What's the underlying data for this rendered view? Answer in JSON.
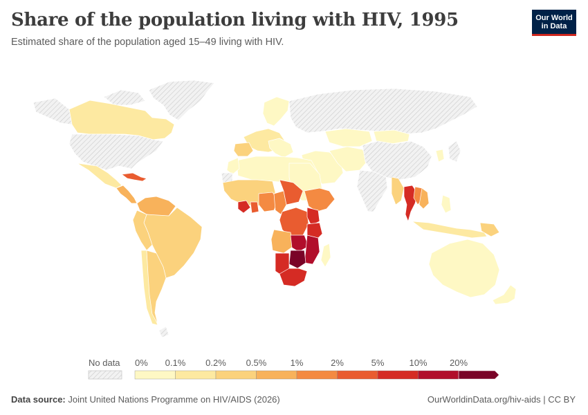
{
  "header": {
    "title": "Share of the population living with HIV, 1995",
    "subtitle": "Estimated share of the population aged 15–49 living with HIV.",
    "logo_line1": "Our World",
    "logo_line2": "in Data"
  },
  "legend": {
    "no_data_label": "No data",
    "thresholds": [
      "0%",
      "0.1%",
      "0.2%",
      "0.5%",
      "1%",
      "2%",
      "5%",
      "10%",
      "20%"
    ],
    "colors": [
      "#fef8c4",
      "#fde9a1",
      "#fbd27d",
      "#f8b25b",
      "#f48a42",
      "#e95c30",
      "#d52b24",
      "#b10e2b",
      "#7a0327"
    ],
    "no_data_color": "#e6e6e6"
  },
  "footer": {
    "source_label": "Data source:",
    "source_text": "Joint United Nations Programme on HIV/AIDS (2026)",
    "link_text": "OurWorldinData.org/hiv-aids | CC BY"
  }
}
